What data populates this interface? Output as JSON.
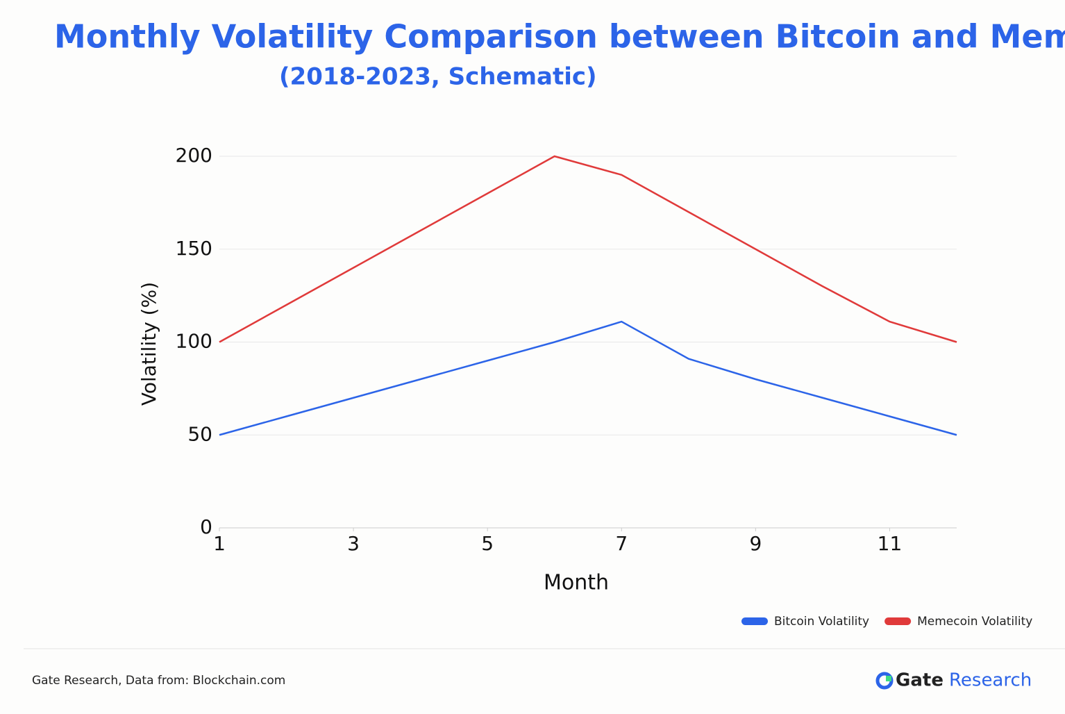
{
  "chart_data": {
    "type": "line",
    "title": "Monthly Volatility Comparison between Bitcoin and Memecoins",
    "subtitle": "(2018-2023, Schematic)",
    "x_label": "Month",
    "y_label": "Volatility (%)",
    "x": [
      1,
      2,
      3,
      4,
      5,
      6,
      7,
      8,
      9,
      10,
      11,
      12
    ],
    "series": [
      {
        "name": "Bitcoin Volatility",
        "color": "#2c64e8",
        "values": [
          50,
          60,
          70,
          80,
          90,
          100,
          111,
          91,
          80,
          70,
          60,
          50
        ]
      },
      {
        "name": "Memecoin Volatility",
        "color": "#e03a3a",
        "values": [
          100,
          120,
          140,
          160,
          180,
          200,
          190,
          170,
          150,
          130,
          111,
          100
        ]
      }
    ],
    "xlim": [
      1,
      12
    ],
    "xticks": [
      1,
      3,
      5,
      7,
      9,
      11
    ],
    "ylim": [
      0,
      200
    ],
    "yticks": [
      0,
      50,
      100,
      150,
      200
    ],
    "grid": true,
    "legend": "bottom-right",
    "source": "Gate Research, Data from: Blockchain.com",
    "brand": "Gate",
    "brand_suffix": "Research"
  }
}
